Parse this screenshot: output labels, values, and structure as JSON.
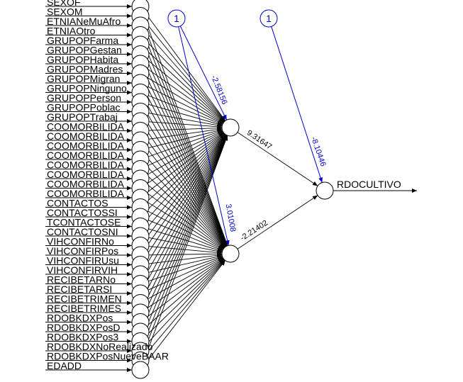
{
  "inputs": [
    "SEXOF",
    "SEXOM",
    "ETNIANeMuAfro",
    "ETNIAOtro",
    "GRUPOPFarma",
    "GRUPOPGestan",
    "GRUPOPHabita",
    "GRUPOPMadres",
    "GRUPOPMigran",
    "GRUPOPNinguno",
    "GRUPOPPerson",
    "GRUPOPPoblac",
    "GRUPOPTrabaj",
    "COOMORBILIDA",
    "COOMORBILIDA",
    "COOMORBILIDA",
    "COOMORBILIDA",
    "COOMORBILIDA",
    "COOMORBILIDA",
    "COOMORBILIDA",
    "COOMORBILIDA",
    "CONTACTOS",
    "CONTACTOSSI",
    "TCONTACTOSE",
    "CONTACTOSNI",
    "VIHCONFIRNo",
    "VIHCONFIRPos",
    "VIHCONFIRUsu",
    "VIHCONFIRVIH",
    "RECIBETARNo",
    "RECIBETARSI",
    "RECIBETRIMEN",
    "RECIBETRIMES",
    "RDOBKDXPos",
    "RDOBKDXPosD",
    "RDOBKDXPos3",
    "RDOBKDXNoRealizado",
    "RDOBKDXPosNueveBAAR",
    "EDADD"
  ],
  "hidden_bias_label": "1",
  "output_bias_label": "1",
  "hidden_bias_weights": [
    "-2.58156",
    "3.01008"
  ],
  "hidden_to_output_weights": [
    "9.31647",
    "-2.21402"
  ],
  "output_bias_weight": "-8.10446",
  "output_label": "RDOCULTIVO",
  "colors": {
    "weights": "#000000",
    "bias": "#0000cc"
  }
}
